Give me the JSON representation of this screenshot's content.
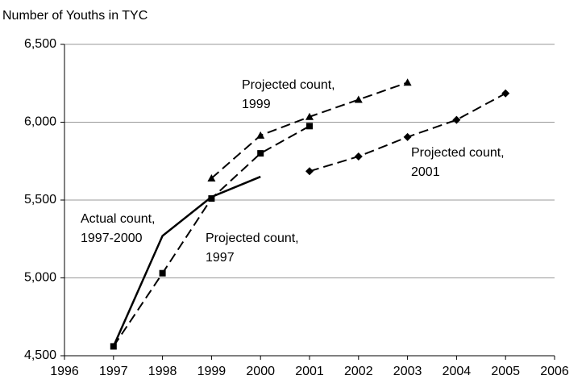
{
  "chart_data": {
    "type": "line",
    "y_axis_title": "Number of Youths in TYC",
    "xlim": [
      1996,
      2006
    ],
    "xticks": [
      1996,
      1997,
      1998,
      1999,
      2000,
      2001,
      2002,
      2003,
      2004,
      2005,
      2006
    ],
    "ylim": [
      4500,
      6500
    ],
    "yticks": [
      {
        "value": 4500,
        "label": "4,500"
      },
      {
        "value": 5000,
        "label": "5,000"
      },
      {
        "value": 5500,
        "label": "5,500"
      },
      {
        "value": 6000,
        "label": "6,000"
      },
      {
        "value": 6500,
        "label": "6,500"
      }
    ],
    "grid": true,
    "series": [
      {
        "color": "#000000",
        "dash": false,
        "marker": "none",
        "label_lines": [
          "Actual count,",
          "1997-2000"
        ],
        "x": [
          1997,
          1998,
          1999,
          2000
        ],
        "values": [
          4560,
          5270,
          5520,
          5650
        ]
      },
      {
        "color": "#000000",
        "dash": true,
        "marker": "square",
        "label_lines": [
          "Projected count,",
          "1997"
        ],
        "x": [
          1997,
          1998,
          1999,
          2000,
          2001
        ],
        "values": [
          4560,
          5030,
          5510,
          5800,
          5975
        ]
      },
      {
        "color": "#000000",
        "dash": true,
        "marker": "triangle",
        "label_lines": [
          "Projected count,",
          "1999"
        ],
        "x": [
          1999,
          2000,
          2001,
          2002,
          2003
        ],
        "values": [
          5640,
          5915,
          6035,
          6145,
          6255
        ]
      },
      {
        "color": "#000000",
        "dash": true,
        "marker": "diamond",
        "label_lines": [
          "Projected count,",
          "2001"
        ],
        "x": [
          2001,
          2002,
          2003,
          2004,
          2005
        ],
        "values": [
          5685,
          5780,
          5905,
          6015,
          6185
        ]
      }
    ]
  }
}
